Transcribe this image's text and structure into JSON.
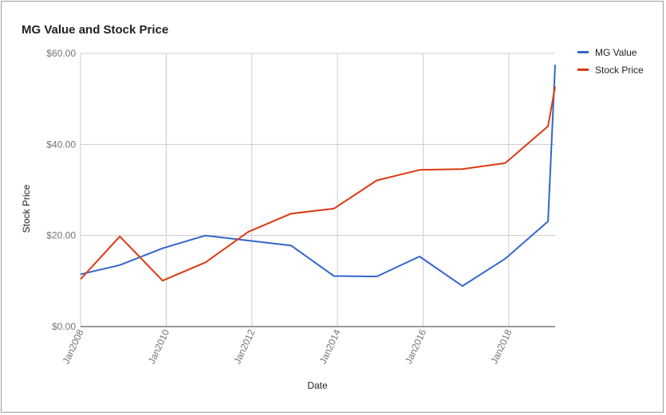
{
  "chart_data": {
    "type": "line",
    "title": "MG Value and Stock Price",
    "xlabel": "Date",
    "ylabel": "Stock Price",
    "ylim": [
      0,
      60
    ],
    "xlim": [
      "2008-01",
      "2019-02"
    ],
    "y_ticks": [
      "$0.00",
      "$20.00",
      "$40.00",
      "$60.00"
    ],
    "x_ticks": [
      {
        "label": "Jan2008",
        "date": "2008-01"
      },
      {
        "label": "Jan2010",
        "date": "2010-01"
      },
      {
        "label": "Jan2012",
        "date": "2012-01"
      },
      {
        "label": "Jan2014",
        "date": "2014-01"
      },
      {
        "label": "Jan2016",
        "date": "2016-01"
      },
      {
        "label": "Jan2018",
        "date": "2018-01"
      }
    ],
    "x": [
      "2008-01",
      "2008-12",
      "2009-12",
      "2010-12",
      "2011-12",
      "2012-12",
      "2013-12",
      "2014-12",
      "2015-12",
      "2016-12",
      "2017-12",
      "2018-12",
      "2019-02"
    ],
    "series": [
      {
        "name": "MG Value",
        "color": "#3366cc",
        "values": [
          11.5,
          13.5,
          17.2,
          20.0,
          18.9,
          17.8,
          11.1,
          11.0,
          15.4,
          8.9,
          14.9,
          23.1,
          57.5
        ]
      },
      {
        "name": "Stock Price",
        "color": "#dc3912",
        "values": [
          10.4,
          19.8,
          10.1,
          14.1,
          20.8,
          24.8,
          25.9,
          32.1,
          34.4,
          34.6,
          35.9,
          44.0,
          52.7
        ]
      }
    ],
    "grid": true,
    "legend": "right"
  }
}
